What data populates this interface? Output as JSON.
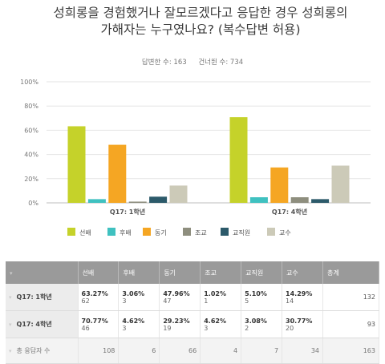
{
  "survey": {
    "title": "성희롱을 경험했거나 잘모르겠다고 응답한 경우 성희롱의 가해자는 누구였나요? (복수답변 허용)",
    "answered": "답변한 수: 163",
    "skipped": "건너뛴 수: 734"
  },
  "chart_data": {
    "type": "bar",
    "categories": [
      "Q17: 1학년",
      "Q17: 4학년"
    ],
    "series": [
      {
        "name": "선배",
        "color": "#c5d22a",
        "values": [
          63.27,
          70.77
        ]
      },
      {
        "name": "후배",
        "color": "#3fc1c0",
        "values": [
          3.06,
          4.62
        ]
      },
      {
        "name": "동기",
        "color": "#f5a623",
        "values": [
          47.96,
          29.23
        ]
      },
      {
        "name": "조교",
        "color": "#8e8e7e",
        "values": [
          1.02,
          4.62
        ]
      },
      {
        "name": "교직원",
        "color": "#2c5a6a",
        "values": [
          5.1,
          3.08
        ]
      },
      {
        "name": "교수",
        "color": "#cccab8",
        "values": [
          14.29,
          30.77
        ]
      }
    ],
    "ylim": [
      0,
      100
    ],
    "yticks": [
      "0%",
      "20%",
      "40%",
      "60%",
      "80%",
      "100%"
    ],
    "grid": true,
    "legend": "bottom"
  },
  "table": {
    "headers": [
      "선배",
      "후배",
      "동기",
      "조교",
      "교직원",
      "교수",
      "총계"
    ],
    "rows": [
      {
        "label": "Q17: 1학년",
        "cells": [
          [
            "63.27%",
            "62"
          ],
          [
            "3.06%",
            "3"
          ],
          [
            "47.96%",
            "47"
          ],
          [
            "1.02%",
            "1"
          ],
          [
            "5.10%",
            "5"
          ],
          [
            "14.29%",
            "14"
          ]
        ],
        "total": "132"
      },
      {
        "label": "Q17: 4학년",
        "cells": [
          [
            "70.77%",
            "46"
          ],
          [
            "4.62%",
            "3"
          ],
          [
            "29.23%",
            "19"
          ],
          [
            "4.62%",
            "3"
          ],
          [
            "3.08%",
            "2"
          ],
          [
            "30.77%",
            "20"
          ]
        ],
        "total": "93"
      }
    ],
    "total_row": {
      "label": "총 응답자 수",
      "values": [
        "108",
        "6",
        "66",
        "4",
        "7",
        "34",
        "163"
      ]
    }
  }
}
